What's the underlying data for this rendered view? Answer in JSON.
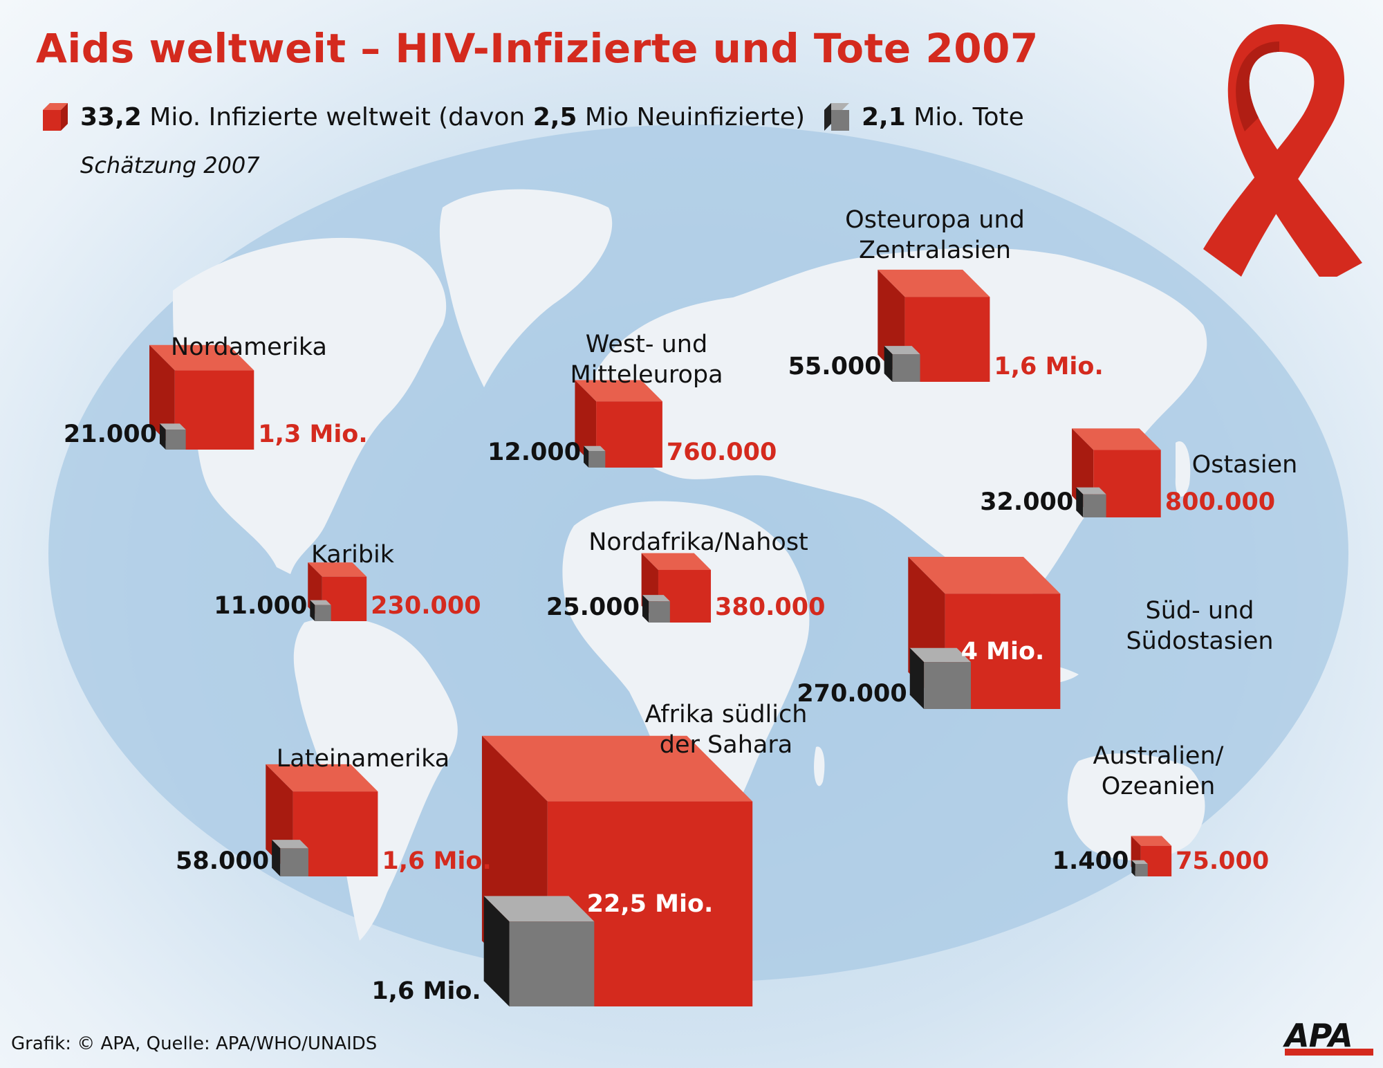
{
  "title": "Aids weltweit  – HIV-Infizierte und Tote 2007",
  "legend": {
    "infected_total": "33,2",
    "infected_text": " Mio. Infizierte weltweit (davon ",
    "new_infected": "2,5",
    "new_infected_text": " Mio Neuinfizierte)",
    "deaths_total": "2,1",
    "deaths_text": " Mio. Tote"
  },
  "subtitle": "Schätzung 2007",
  "source": "Grafik: © APA, Quelle: APA/WHO/UNAIDS",
  "logo_text": "APA",
  "colors": {
    "infected": "#d42a1e",
    "deaths": "#7a7a7a",
    "land": "#eef2f6",
    "ocean": "#a9c9e4"
  },
  "chart_data": {
    "type": "table",
    "title": "Aids weltweit  – HIV-Infizierte und Tote 2007",
    "series": [
      {
        "name": "Infizierte",
        "color": "#d42a1e"
      },
      {
        "name": "Tote",
        "color": "#7a7a7a"
      }
    ],
    "regions": [
      {
        "name": "Nordamerika",
        "infected": 1300000,
        "infected_label": "1,3 Mio.",
        "deaths": 21000,
        "deaths_label": "21.000"
      },
      {
        "name": "West- und\nMitteleuropa",
        "infected": 760000,
        "infected_label": "760.000",
        "deaths": 12000,
        "deaths_label": "12.000"
      },
      {
        "name": "Osteuropa und\nZentralasien",
        "infected": 1600000,
        "infected_label": "1,6 Mio.",
        "deaths": 55000,
        "deaths_label": "55.000"
      },
      {
        "name": "Ostasien",
        "infected": 800000,
        "infected_label": "800.000",
        "deaths": 32000,
        "deaths_label": "32.000"
      },
      {
        "name": "Karibik",
        "infected": 230000,
        "infected_label": "230.000",
        "deaths": 11000,
        "deaths_label": "11.000"
      },
      {
        "name": "Nordafrika/Nahost",
        "infected": 380000,
        "infected_label": "380.000",
        "deaths": 25000,
        "deaths_label": "25.000"
      },
      {
        "name": "Süd- und\nSüdostasien",
        "infected": 4000000,
        "infected_label": "4 Mio.",
        "deaths": 270000,
        "deaths_label": "270.000"
      },
      {
        "name": "Lateinamerika",
        "infected": 1600000,
        "infected_label": "1,6 Mio.",
        "deaths": 58000,
        "deaths_label": "58.000"
      },
      {
        "name": "Afrika südlich\nder Sahara",
        "infected": 22500000,
        "infected_label": "22,5 Mio.",
        "deaths": 1600000,
        "deaths_label": "1,6 Mio."
      },
      {
        "name": "Australien/\nOzeanien",
        "infected": 75000,
        "infected_label": "75.000",
        "deaths": 1400,
        "deaths_label": "1.400"
      }
    ]
  }
}
